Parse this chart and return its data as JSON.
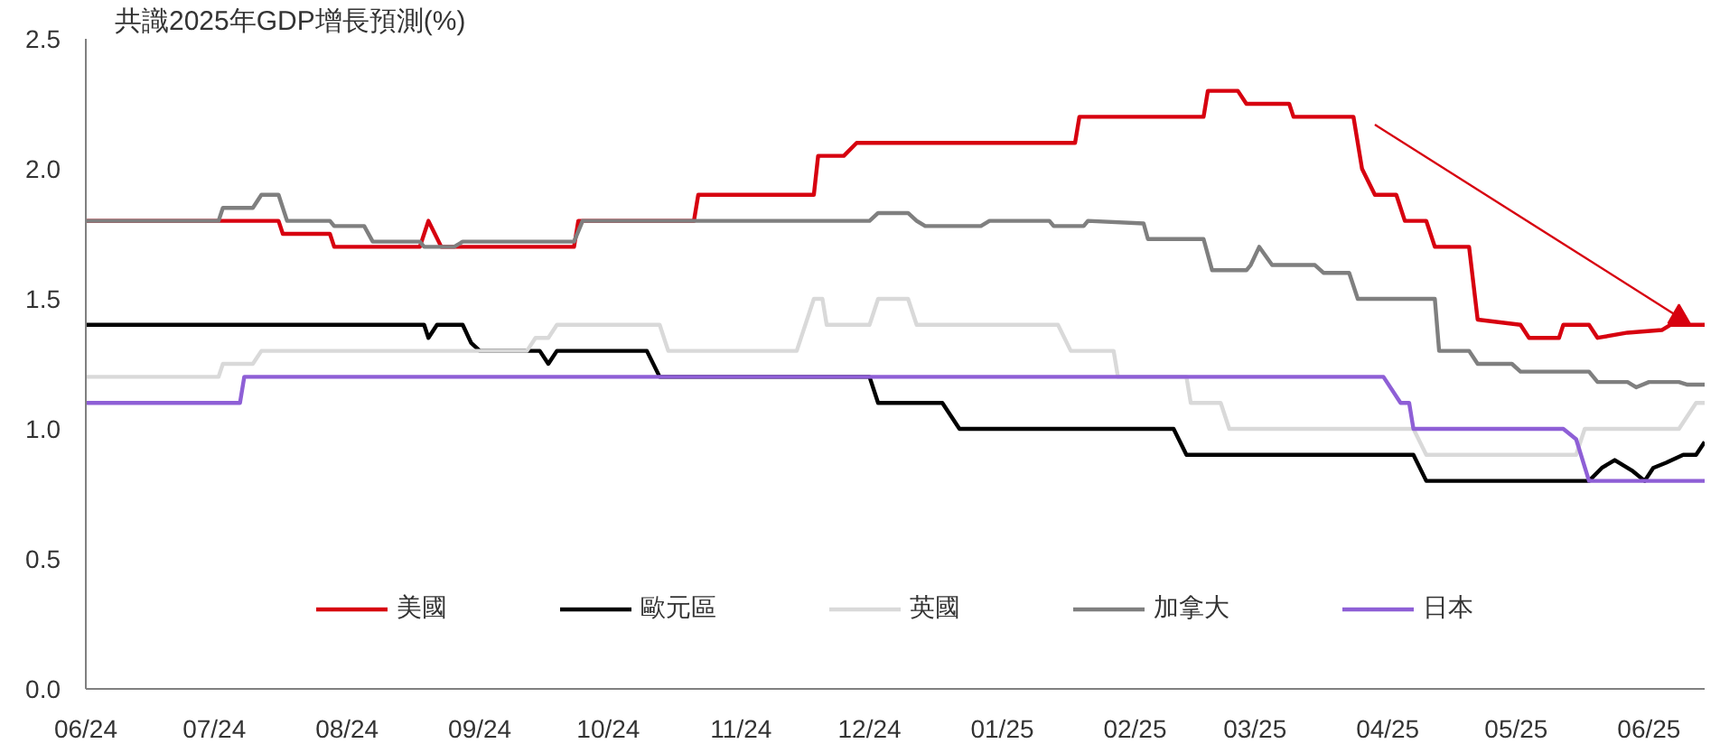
{
  "chart_data": {
    "type": "line",
    "title": "共識2025年GDP增長預測(%)",
    "xlim": [
      "2024-06-01",
      "2025-06-14"
    ],
    "xticks": [
      {
        "value": "2024-06-01",
        "label": "06/24"
      },
      {
        "value": "2024-07-01",
        "label": "07/24"
      },
      {
        "value": "2024-08-01",
        "label": "08/24"
      },
      {
        "value": "2024-09-01",
        "label": "09/24"
      },
      {
        "value": "2024-10-01",
        "label": "10/24"
      },
      {
        "value": "2024-11-01",
        "label": "11/24"
      },
      {
        "value": "2024-12-01",
        "label": "12/24"
      },
      {
        "value": "2025-01-01",
        "label": "01/25"
      },
      {
        "value": "2025-02-01",
        "label": "02/25"
      },
      {
        "value": "2025-03-01",
        "label": "03/25"
      },
      {
        "value": "2025-04-01",
        "label": "04/25"
      },
      {
        "value": "2025-05-01",
        "label": "05/25"
      },
      {
        "value": "2025-06-01",
        "label": "06/25"
      }
    ],
    "ylim": [
      0,
      2.5
    ],
    "yticks": [
      {
        "value": 0,
        "label": "0.0"
      },
      {
        "value": 0.5,
        "label": "0.5"
      },
      {
        "value": 1,
        "label": "1.0"
      },
      {
        "value": 1.5,
        "label": "1.5"
      },
      {
        "value": 2,
        "label": "2.0"
      },
      {
        "value": 2.5,
        "label": "2.5"
      }
    ],
    "grid": false,
    "legend": "bottom",
    "marker": "none",
    "line_style": "solid",
    "series": [
      {
        "name": "美國",
        "color": "#d7000f",
        "x": [
          "2024-06-01",
          "2024-07-16",
          "2024-07-17",
          "2024-07-28",
          "2024-07-29",
          "2024-08-18",
          "2024-08-20",
          "2024-08-23",
          "2024-09-23",
          "2024-09-24",
          "2024-10-21",
          "2024-10-22",
          "2024-11-18",
          "2024-11-19",
          "2024-11-25",
          "2024-11-28",
          "2025-01-18",
          "2025-01-19",
          "2025-02-17",
          "2025-02-18",
          "2025-02-25",
          "2025-02-27",
          "2025-03-09",
          "2025-03-10",
          "2025-03-24",
          "2025-03-26",
          "2025-03-29",
          "2025-04-03",
          "2025-04-05",
          "2025-04-10",
          "2025-04-12",
          "2025-04-20",
          "2025-04-22",
          "2025-05-02",
          "2025-05-04",
          "2025-05-11",
          "2025-05-12",
          "2025-05-18",
          "2025-05-20",
          "2025-05-27",
          "2025-06-04",
          "2025-06-06",
          "2025-06-14"
        ],
        "values": [
          1.8,
          1.8,
          1.75,
          1.75,
          1.7,
          1.7,
          1.8,
          1.7,
          1.7,
          1.8,
          1.8,
          1.9,
          1.9,
          2.05,
          2.05,
          2.1,
          2.1,
          2.2,
          2.2,
          2.3,
          2.3,
          2.25,
          2.25,
          2.2,
          2.2,
          2.0,
          1.9,
          1.9,
          1.8,
          1.8,
          1.7,
          1.7,
          1.42,
          1.4,
          1.35,
          1.35,
          1.4,
          1.4,
          1.35,
          1.37,
          1.38,
          1.4,
          1.4
        ]
      },
      {
        "name": "歐元區",
        "color": "#000000",
        "x": [
          "2024-06-01",
          "2024-08-19",
          "2024-08-20",
          "2024-08-22",
          "2024-08-28",
          "2024-08-30",
          "2024-09-01",
          "2024-09-15",
          "2024-09-17",
          "2024-09-19",
          "2024-10-10",
          "2024-10-13",
          "2024-12-01",
          "2024-12-03",
          "2024-12-18",
          "2024-12-22",
          "2025-02-10",
          "2025-02-13",
          "2025-04-07",
          "2025-04-10",
          "2025-05-18",
          "2025-05-21",
          "2025-05-24",
          "2025-05-28",
          "2025-05-31",
          "2025-06-02",
          "2025-06-05",
          "2025-06-09",
          "2025-06-12",
          "2025-06-14"
        ],
        "values": [
          1.4,
          1.4,
          1.35,
          1.4,
          1.4,
          1.33,
          1.3,
          1.3,
          1.25,
          1.3,
          1.3,
          1.2,
          1.2,
          1.1,
          1.1,
          1.0,
          1.0,
          0.9,
          0.9,
          0.8,
          0.8,
          0.85,
          0.88,
          0.84,
          0.8,
          0.85,
          0.87,
          0.9,
          0.9,
          0.95
        ]
      },
      {
        "name": "英國",
        "color": "#d9d9d9",
        "x": [
          "2024-06-01",
          "2024-07-02",
          "2024-07-03",
          "2024-07-10",
          "2024-07-12",
          "2024-09-12",
          "2024-09-14",
          "2024-09-17",
          "2024-09-19",
          "2024-10-13",
          "2024-10-15",
          "2024-11-14",
          "2024-11-18",
          "2024-11-20",
          "2024-11-21",
          "2024-12-01",
          "2024-12-03",
          "2024-12-10",
          "2024-12-12",
          "2025-01-14",
          "2025-01-17",
          "2025-01-27",
          "2025-01-28",
          "2025-02-13",
          "2025-02-14",
          "2025-02-21",
          "2025-02-23",
          "2025-04-07",
          "2025-04-10",
          "2025-05-15",
          "2025-05-17",
          "2025-06-08",
          "2025-06-12",
          "2025-06-14"
        ],
        "values": [
          1.2,
          1.2,
          1.25,
          1.25,
          1.3,
          1.3,
          1.35,
          1.35,
          1.4,
          1.4,
          1.3,
          1.3,
          1.5,
          1.5,
          1.4,
          1.4,
          1.5,
          1.5,
          1.4,
          1.4,
          1.3,
          1.3,
          1.2,
          1.2,
          1.1,
          1.1,
          1.0,
          1.0,
          0.9,
          0.9,
          1.0,
          1.0,
          1.1,
          1.1
        ]
      },
      {
        "name": "加拿大",
        "color": "#7f7f7f",
        "x": [
          "2024-06-01",
          "2024-07-02",
          "2024-07-03",
          "2024-07-10",
          "2024-07-12",
          "2024-07-16",
          "2024-07-18",
          "2024-07-28",
          "2024-07-29",
          "2024-08-05",
          "2024-08-07",
          "2024-08-18",
          "2024-08-19",
          "2024-08-26",
          "2024-08-28",
          "2024-09-23",
          "2024-09-25",
          "2024-12-01",
          "2024-12-03",
          "2024-12-10",
          "2024-12-12",
          "2024-12-14",
          "2024-12-27",
          "2024-12-29",
          "2025-01-12",
          "2025-01-13",
          "2025-01-20",
          "2025-01-21",
          "2025-02-03",
          "2025-02-04",
          "2025-02-17",
          "2025-02-19",
          "2025-02-27",
          "2025-02-28",
          "2025-03-02",
          "2025-03-05",
          "2025-03-15",
          "2025-03-17",
          "2025-03-23",
          "2025-03-25",
          "2025-04-12",
          "2025-04-13",
          "2025-04-20",
          "2025-04-22",
          "2025-04-30",
          "2025-05-02",
          "2025-05-18",
          "2025-05-20",
          "2025-05-27",
          "2025-05-29",
          "2025-06-01",
          "2025-06-08",
          "2025-06-10",
          "2025-06-14"
        ],
        "values": [
          1.8,
          1.8,
          1.85,
          1.85,
          1.9,
          1.9,
          1.8,
          1.8,
          1.78,
          1.78,
          1.72,
          1.72,
          1.7,
          1.7,
          1.72,
          1.72,
          1.8,
          1.8,
          1.83,
          1.83,
          1.8,
          1.78,
          1.78,
          1.8,
          1.8,
          1.78,
          1.78,
          1.8,
          1.79,
          1.73,
          1.73,
          1.61,
          1.61,
          1.63,
          1.7,
          1.63,
          1.63,
          1.6,
          1.6,
          1.5,
          1.5,
          1.3,
          1.3,
          1.25,
          1.25,
          1.22,
          1.22,
          1.18,
          1.18,
          1.16,
          1.18,
          1.18,
          1.17,
          1.17
        ]
      },
      {
        "type": "line",
        "marker": "triangle",
        "color": "#d7000f",
        "x": [
          "2025-03-29",
          "2025-06-08"
        ],
        "values": [
          2.17,
          1.43
        ]
      },
      {
        "name": "日本",
        "color": "#8e5fd6",
        "x": [
          "2024-06-01",
          "2024-07-07",
          "2024-07-08",
          "2025-03-31",
          "2025-04-04",
          "2025-04-06",
          "2025-04-07",
          "2025-05-12",
          "2025-05-15",
          "2025-05-18",
          "2025-06-14"
        ],
        "values": [
          1.1,
          1.1,
          1.2,
          1.2,
          1.1,
          1.1,
          1.0,
          1.0,
          0.96,
          0.8,
          0.8
        ]
      }
    ]
  }
}
